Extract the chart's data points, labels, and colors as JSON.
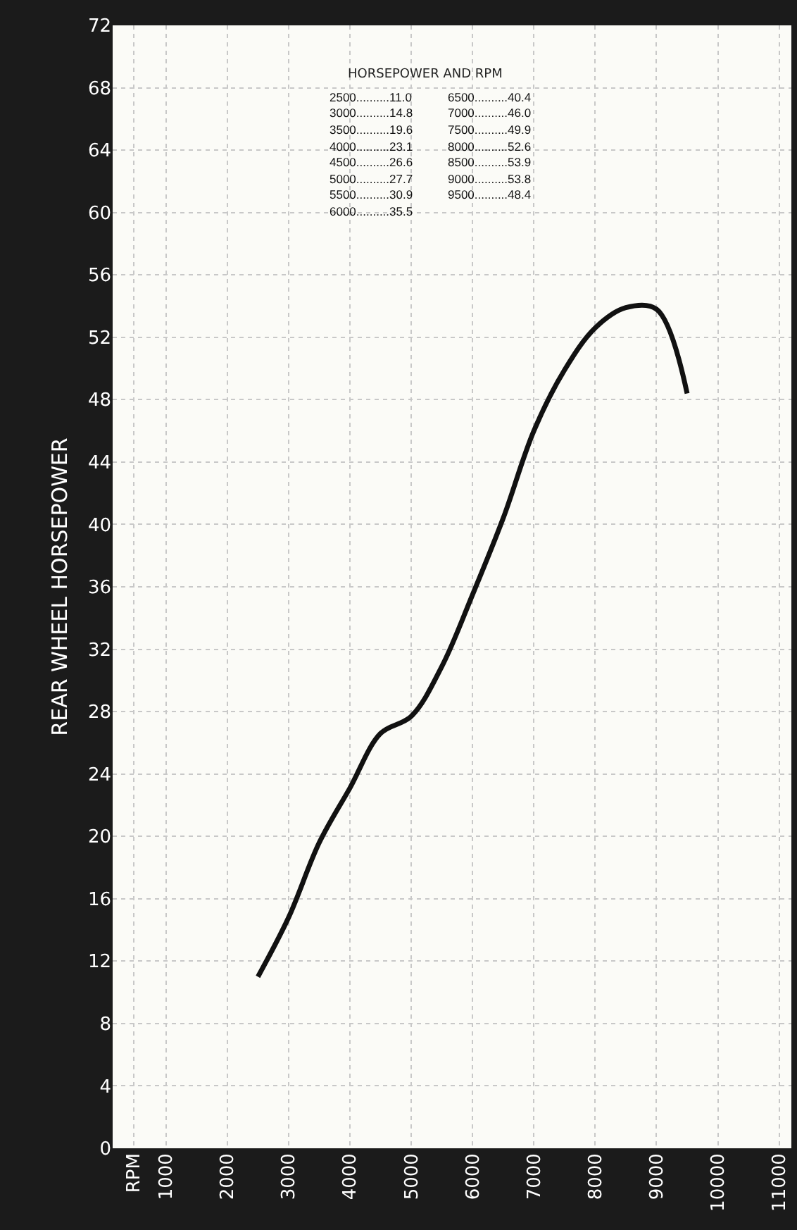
{
  "chart_data": {
    "type": "line",
    "ylabel": "REAR WHEEL HORSEPOWER",
    "annotations": [
      "HORSEPOWER AND RPM",
      "2500..........11.0",
      "3000..........14.8",
      "3500..........19.6",
      "4000..........23.1",
      "4500..........26.6",
      "5000..........27.7",
      "5500..........30.9",
      "6000..........35.5",
      "6500..........40.4",
      "7000..........46.0",
      "7500..........49.9",
      "8000..........52.6",
      "8500..........53.9",
      "9000..........53.8",
      "9500..........48.4"
    ],
    "x": [
      2500,
      3000,
      3500,
      4000,
      4500,
      5000,
      5500,
      6000,
      6500,
      7000,
      7500,
      8000,
      8500,
      9000,
      9500
    ],
    "series": [
      {
        "color": "#111111",
        "values": [
          11.0,
          14.8,
          19.6,
          23.1,
          26.6,
          27.7,
          30.9,
          35.5,
          40.4,
          46.0,
          49.9,
          52.6,
          53.9,
          53.8,
          48.4
        ]
      }
    ],
    "xlim": [
      130,
      11200
    ],
    "xticks": [
      {
        "value": 470,
        "label": "RPM"
      },
      1000,
      2000,
      3000,
      4000,
      5000,
      6000,
      7000,
      8000,
      9000,
      10000,
      11000
    ],
    "ylim": [
      0,
      72
    ],
    "yticks": [
      0,
      4,
      8,
      12,
      16,
      20,
      24,
      28,
      32,
      36,
      40,
      44,
      48,
      52,
      56,
      60,
      64,
      68,
      72
    ],
    "grid": true,
    "marker": "none",
    "line_style": "solid"
  }
}
